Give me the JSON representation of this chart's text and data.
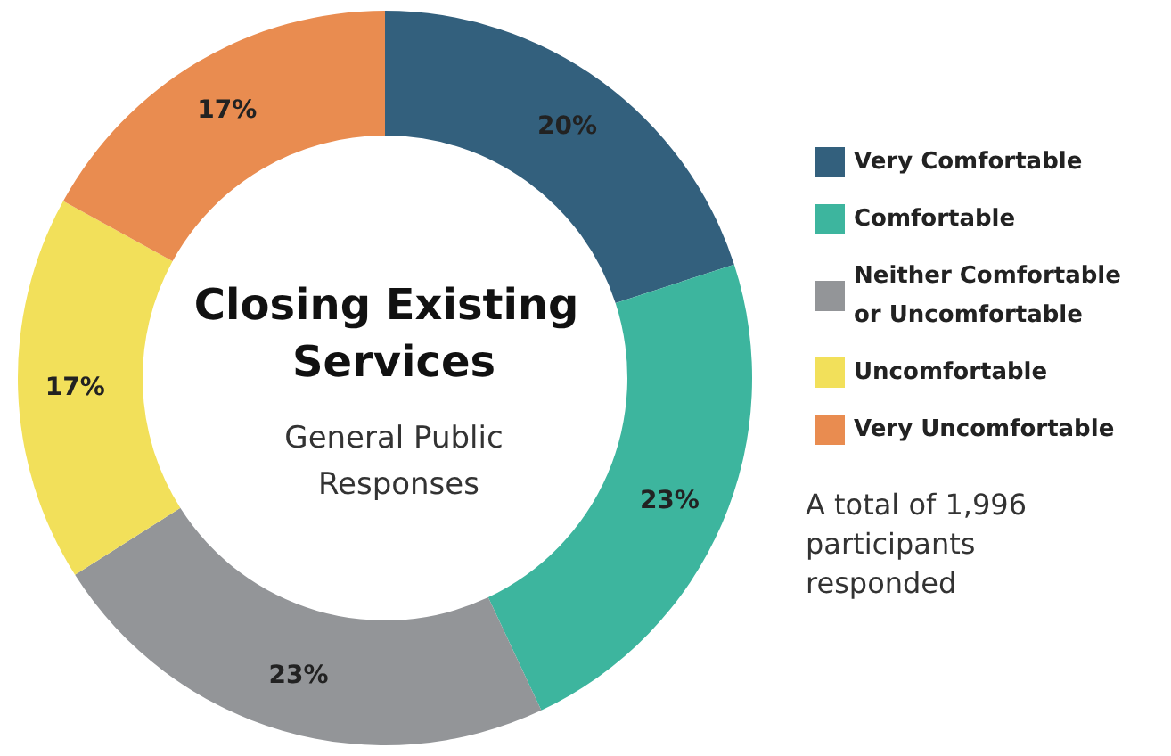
{
  "chart_data": {
    "type": "donut",
    "title": "Closing Existing Services",
    "subtitle": "General Public Responses",
    "categories": [
      "Very Comfortable",
      "Comfortable",
      "Neither Comfortable or Uncomfortable",
      "Uncomfortable",
      "Very Uncomfortable"
    ],
    "values": [
      20,
      23,
      23,
      17,
      17
    ],
    "colors": [
      "#33607d",
      "#3db59e",
      "#939598",
      "#f2e05a",
      "#e98c50"
    ],
    "value_labels": [
      "20%",
      "23%",
      "23%",
      "17%",
      "17%"
    ],
    "legend": "right",
    "annotations": [
      "A total of 1,996 participants responded"
    ]
  }
}
